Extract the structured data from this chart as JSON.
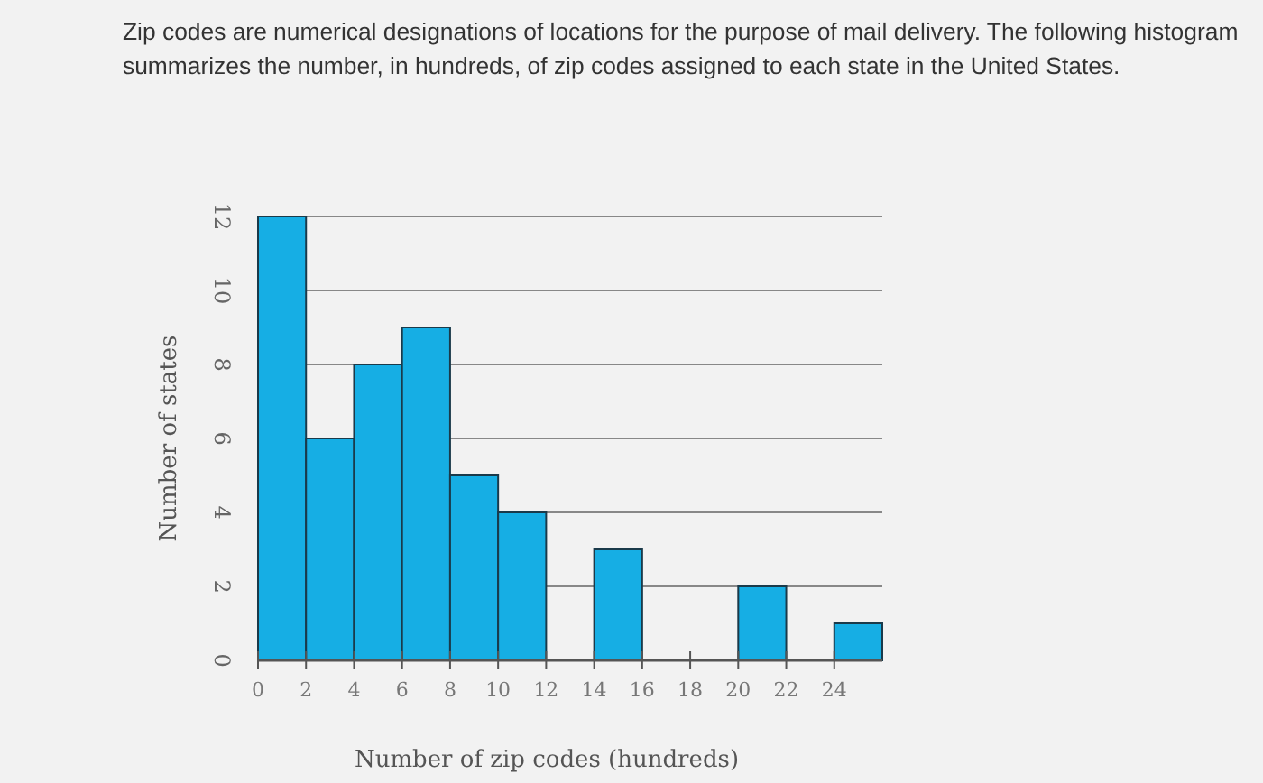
{
  "chart_data": {
    "type": "histogram",
    "title": "Zip codes are numerical designations of locations for the purpose of mail delivery. The following histogram summarizes the number, in hundreds, of zip codes assigned to each state in the United States.",
    "xlabel": "Number of zip codes (hundreds)",
    "ylabel": "Number of states",
    "bins": [
      0,
      2,
      4,
      6,
      8,
      10,
      12,
      14,
      16,
      18,
      20,
      22,
      24,
      26
    ],
    "values": [
      12,
      6,
      8,
      9,
      5,
      4,
      0,
      3,
      0,
      0,
      2,
      0,
      1
    ],
    "color": "#16aee4",
    "xlim": [
      0,
      26
    ],
    "ylim": [
      0,
      12
    ],
    "xticks": [
      0,
      2,
      4,
      6,
      8,
      10,
      12,
      14,
      16,
      18,
      20,
      22,
      24
    ],
    "yticks": [
      0,
      2,
      4,
      6,
      8,
      10,
      12
    ],
    "grid": "y"
  }
}
